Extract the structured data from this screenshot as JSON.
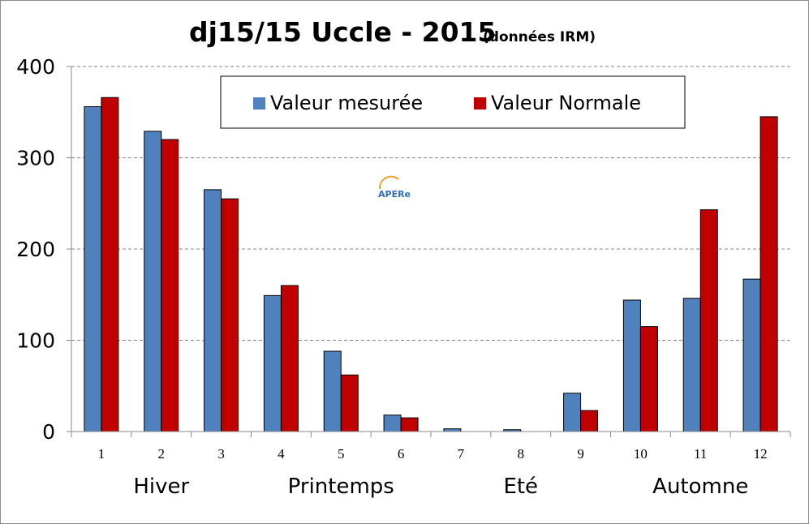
{
  "chart_data": {
    "type": "bar",
    "title": "dj15/15 Uccle - 2015",
    "subtitle": "(données IRM)",
    "categories": [
      "1",
      "2",
      "3",
      "4",
      "5",
      "6",
      "7",
      "8",
      "9",
      "10",
      "11",
      "12"
    ],
    "series": [
      {
        "name": "Valeur mesurée",
        "color": "#4f81bd",
        "values": [
          356,
          329,
          265,
          149,
          88,
          18,
          3,
          2,
          42,
          144,
          146,
          167
        ]
      },
      {
        "name": "Valeur Normale",
        "color": "#c00000",
        "values": [
          366,
          320,
          255,
          160,
          62,
          15,
          0,
          0,
          23,
          115,
          243,
          345
        ]
      }
    ],
    "yticks": [
      "0",
      "100",
      "200",
      "300",
      "400"
    ],
    "ylim": [
      0,
      400
    ],
    "season_labels": [
      "Hiver",
      "Printemps",
      "Eté",
      "Automne"
    ],
    "grid": "horizontal dashed",
    "legend_position": "top-center",
    "logo_text": "APERe"
  }
}
